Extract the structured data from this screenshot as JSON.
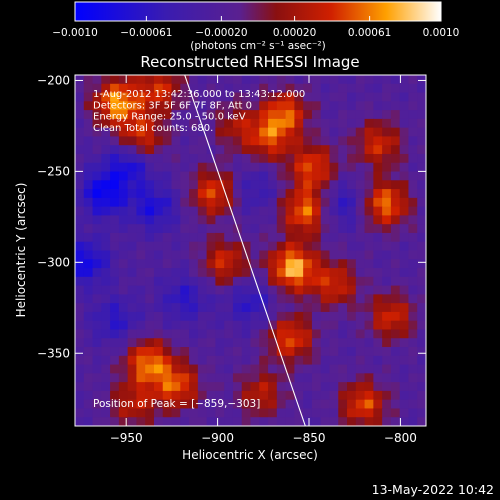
{
  "colorbar": {
    "min": -0.001,
    "max": 0.001,
    "tick_labels": [
      "−0.0010",
      "−0.00061",
      "−0.00020",
      "0.00020",
      "0.00061",
      "0.0010"
    ],
    "tick_values": [
      -0.001,
      -0.00061,
      -0.0002,
      0.0002,
      0.00061,
      0.001
    ],
    "unit_label": "(photons cm⁻² s⁻¹ asec⁻²)",
    "colormap": "blue-purple-red-yellow-white"
  },
  "plot": {
    "title": "Reconstructed RHESSI Image",
    "annotations": [
      "1-Aug-2012 13:42:36.000 to 13:43:12.000",
      "Detectors: 3F 5F 6F 7F 8F, Att 0",
      "Energy Range: 25.0 - 50.0 keV",
      "Clean    Total counts: 680."
    ],
    "peak_label": "Position of Peak = [−859,−303]",
    "footer_timestamp": "13-May-2022 10:42"
  },
  "chart_data": {
    "type": "heatmap",
    "title": "Reconstructed RHESSI Image",
    "xlabel": "Heliocentric X (arcsec)",
    "ylabel": "Heliocentric Y (arcsec)",
    "xlim": [
      -978,
      -786
    ],
    "ylim": [
      -390,
      -197
    ],
    "x_ticks": [
      -950,
      -900,
      -850,
      -800
    ],
    "y_ticks": [
      -200,
      -250,
      -300,
      -350
    ],
    "x_tick_labels": [
      "−950",
      "−900",
      "−850",
      "−800"
    ],
    "y_tick_labels": [
      "−200",
      "−250",
      "−300",
      "−350"
    ],
    "peak": {
      "x": -859,
      "y": -303
    },
    "limb_line": [
      [
        -918,
        -197
      ],
      [
        -852,
        -390
      ]
    ],
    "hotspots": [
      {
        "x": -955,
        "y": -212,
        "v": 0.0009
      },
      {
        "x": -942,
        "y": -232,
        "v": 0.0007
      },
      {
        "x": -932,
        "y": -205,
        "v": 0.0006
      },
      {
        "x": -902,
        "y": -262,
        "v": 0.0007
      },
      {
        "x": -896,
        "y": -300,
        "v": 0.0006
      },
      {
        "x": -872,
        "y": -232,
        "v": 0.0006
      },
      {
        "x": -863,
        "y": -218,
        "v": 0.0007
      },
      {
        "x": -859,
        "y": -303,
        "v": 0.001
      },
      {
        "x": -852,
        "y": -272,
        "v": 0.0008
      },
      {
        "x": -848,
        "y": -248,
        "v": 0.0007
      },
      {
        "x": -860,
        "y": -342,
        "v": 0.0007
      },
      {
        "x": -836,
        "y": -312,
        "v": 0.0006
      },
      {
        "x": -812,
        "y": -235,
        "v": 0.0006
      },
      {
        "x": -808,
        "y": -268,
        "v": 0.0008
      },
      {
        "x": -805,
        "y": -330,
        "v": 0.0006
      },
      {
        "x": -820,
        "y": -378,
        "v": 0.0007
      },
      {
        "x": -938,
        "y": -355,
        "v": 0.0008
      },
      {
        "x": -922,
        "y": -368,
        "v": 0.0007
      },
      {
        "x": -946,
        "y": -378,
        "v": 0.0005
      },
      {
        "x": -876,
        "y": -372,
        "v": 0.0005
      },
      {
        "x": -890,
        "y": -225,
        "v": 0.0004
      }
    ],
    "coldspots": [
      {
        "x": -962,
        "y": -262,
        "v": -0.0007
      },
      {
        "x": -948,
        "y": -245,
        "v": -0.0006
      },
      {
        "x": -972,
        "y": -300,
        "v": -0.0006
      },
      {
        "x": -935,
        "y": -270,
        "v": -0.0005
      },
      {
        "x": -918,
        "y": -320,
        "v": -0.0004
      },
      {
        "x": -882,
        "y": -322,
        "v": -0.0004
      },
      {
        "x": -832,
        "y": -268,
        "v": -0.0004
      },
      {
        "x": -956,
        "y": -332,
        "v": -0.0004
      },
      {
        "x": -880,
        "y": -260,
        "v": -0.0003
      }
    ]
  }
}
